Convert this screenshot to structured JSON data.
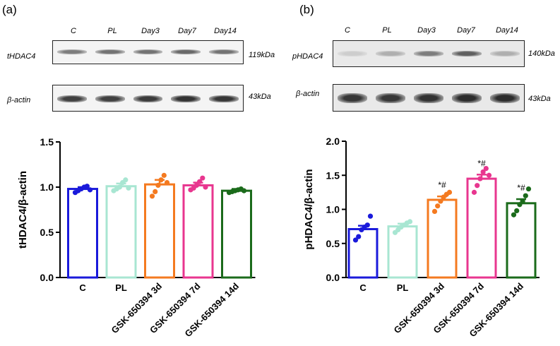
{
  "panels": {
    "a": {
      "label": "(a)",
      "blot": {
        "lanes": [
          "C",
          "PL",
          "Day3",
          "Day7",
          "Day14"
        ],
        "rows": [
          {
            "protein": "tHDAC4",
            "size": "119kDa",
            "band_intensity": [
              0.55,
              0.6,
              0.6,
              0.65,
              0.6
            ]
          },
          {
            "protein": "β-actin",
            "size": "43kDa",
            "band_intensity": [
              0.85,
              0.85,
              0.88,
              0.92,
              0.9
            ]
          }
        ]
      }
    },
    "b": {
      "label": "(b)",
      "blot": {
        "lanes": [
          "C",
          "PL",
          "Day3",
          "Day7",
          "Day14"
        ],
        "rows": [
          {
            "protein": "pHDAC4",
            "size": "140kDa",
            "band_intensity": [
              0.15,
              0.3,
              0.55,
              0.7,
              0.3
            ]
          },
          {
            "protein": "β-actin",
            "size": "43kDa",
            "band_intensity": [
              0.9,
              0.9,
              0.92,
              0.95,
              0.95
            ]
          }
        ]
      }
    }
  },
  "chart_data": [
    {
      "type": "bar",
      "title": "",
      "ylabel": "tHDAC4/β-actin",
      "xlabel": "",
      "ylim": [
        0,
        1.5
      ],
      "yticks": [
        "0.0",
        "0.5",
        "1.0",
        "1.5"
      ],
      "categories": [
        "C",
        "PL",
        "GSK-650394 3d",
        "GSK-650394 7d",
        "GSK-650394 14d"
      ],
      "colors": [
        "#1a1adb",
        "#a8e6d2",
        "#f47a20",
        "#e8368f",
        "#1b6b1b"
      ],
      "values": [
        0.98,
        1.01,
        1.03,
        1.02,
        0.96
      ],
      "errors": [
        0.02,
        0.03,
        0.05,
        0.03,
        0.02
      ],
      "points": [
        [
          0.94,
          0.96,
          0.98,
          1.0,
          1.01,
          0.97
        ],
        [
          0.96,
          0.98,
          1.0,
          1.05,
          1.08,
          0.99
        ],
        [
          0.9,
          0.95,
          1.02,
          1.08,
          1.13,
          1.05
        ],
        [
          0.97,
          0.99,
          1.02,
          1.06,
          1.1,
          1.0
        ],
        [
          0.94,
          0.95,
          0.96,
          0.97,
          0.98,
          0.96
        ]
      ],
      "annotations": [
        "",
        "",
        "",
        "",
        ""
      ]
    },
    {
      "type": "bar",
      "title": "",
      "ylabel": "pHDAC4/β-actin",
      "xlabel": "",
      "ylim": [
        0,
        2.0
      ],
      "yticks": [
        "0.0",
        "0.5",
        "1.0",
        "1.5",
        "2.0"
      ],
      "categories": [
        "C",
        "PL",
        "GSK-650394 3d",
        "GSK-650394 7d",
        "GSK-650394 14d"
      ],
      "colors": [
        "#1a1adb",
        "#a8e6d2",
        "#f47a20",
        "#e8368f",
        "#1b6b1b"
      ],
      "values": [
        0.71,
        0.75,
        1.14,
        1.45,
        1.09
      ],
      "errors": [
        0.05,
        0.04,
        0.05,
        0.06,
        0.06
      ],
      "points": [
        [
          0.55,
          0.6,
          0.7,
          0.74,
          0.77,
          0.9
        ],
        [
          0.66,
          0.7,
          0.74,
          0.77,
          0.8,
          0.82
        ],
        [
          0.97,
          1.05,
          1.12,
          1.18,
          1.22,
          1.25
        ],
        [
          1.25,
          1.35,
          1.45,
          1.55,
          1.6,
          1.5
        ],
        [
          0.92,
          0.98,
          1.07,
          1.12,
          1.2,
          1.3
        ]
      ],
      "annotations": [
        "",
        "",
        "*#",
        "*#",
        "*#"
      ]
    }
  ]
}
